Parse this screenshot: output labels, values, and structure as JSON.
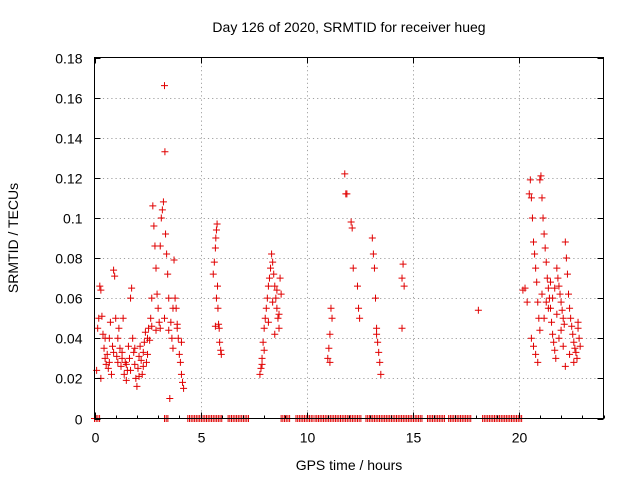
{
  "chart_data": {
    "type": "scatter",
    "title": "Day 126 of 2020, SRMTID for receiver hueg",
    "xlabel": "GPS time / hours",
    "ylabel": "SRMTID / TECUs",
    "xlim": [
      0,
      24
    ],
    "ylim": [
      0,
      0.18
    ],
    "xticks": [
      0,
      5,
      10,
      15,
      20
    ],
    "yticks": [
      0,
      0.02,
      0.04,
      0.06,
      0.08,
      0.1,
      0.12,
      0.14,
      0.16,
      0.18
    ],
    "xtick_labels": [
      "0",
      "5",
      "10",
      "15",
      "20"
    ],
    "ytick_labels": [
      "0",
      "0.02",
      "0.04",
      "0.06",
      "0.08",
      "0.1",
      "0.12",
      "0.14",
      "0.16",
      "0.18"
    ],
    "grid": true,
    "marker": "+",
    "color": "#e00000",
    "series": [
      {
        "name": "SRMTID",
        "points": [
          [
            0.1,
            0.024
          ],
          [
            0.15,
            0.045
          ],
          [
            0.2,
            0.05
          ],
          [
            0.25,
            0.066
          ],
          [
            0.3,
            0.064
          ],
          [
            0.35,
            0.051
          ],
          [
            0.4,
            0.042
          ],
          [
            0.45,
            0.035
          ],
          [
            0.5,
            0.03
          ],
          [
            0.55,
            0.027
          ],
          [
            0.6,
            0.032
          ],
          [
            0.65,
            0.025
          ],
          [
            0.7,
            0.04
          ],
          [
            0.75,
            0.048
          ],
          [
            0.8,
            0.022
          ],
          [
            0.85,
            0.036
          ],
          [
            0.9,
            0.074
          ],
          [
            0.95,
            0.071
          ],
          [
            1.0,
            0.05
          ],
          [
            1.05,
            0.031
          ],
          [
            1.1,
            0.028
          ],
          [
            1.15,
            0.045
          ],
          [
            1.2,
            0.035
          ],
          [
            1.25,
            0.026
          ],
          [
            1.3,
            0.033
          ],
          [
            1.35,
            0.05
          ],
          [
            1.4,
            0.022
          ],
          [
            1.45,
            0.028
          ],
          [
            1.5,
            0.019
          ],
          [
            1.55,
            0.024
          ],
          [
            1.6,
            0.036
          ],
          [
            1.65,
            0.03
          ],
          [
            1.7,
            0.06
          ],
          [
            1.75,
            0.065
          ],
          [
            1.8,
            0.04
          ],
          [
            1.85,
            0.033
          ],
          [
            1.9,
            0.027
          ],
          [
            1.95,
            0.02
          ],
          [
            2.0,
            0.016
          ],
          [
            2.05,
            0.025
          ],
          [
            2.1,
            0.031
          ],
          [
            2.15,
            0.036
          ],
          [
            2.2,
            0.029
          ],
          [
            2.25,
            0.022
          ],
          [
            2.3,
            0.033
          ],
          [
            2.35,
            0.038
          ],
          [
            2.4,
            0.043
          ],
          [
            2.45,
            0.028
          ],
          [
            2.5,
            0.032
          ],
          [
            2.55,
            0.045
          ],
          [
            2.6,
            0.039
          ],
          [
            2.65,
            0.05
          ],
          [
            2.7,
            0.06
          ],
          [
            2.75,
            0.106
          ],
          [
            2.8,
            0.096
          ],
          [
            2.85,
            0.086
          ],
          [
            2.9,
            0.075
          ],
          [
            2.95,
            0.062
          ],
          [
            3.0,
            0.055
          ],
          [
            3.05,
            0.048
          ],
          [
            3.1,
            0.086
          ],
          [
            3.15,
            0.1
          ],
          [
            3.2,
            0.104
          ],
          [
            3.25,
            0.108
          ],
          [
            3.3,
            0.166
          ],
          [
            3.32,
            0.133
          ],
          [
            3.35,
            0.092
          ],
          [
            3.4,
            0.082
          ],
          [
            3.45,
            0.072
          ],
          [
            3.5,
            0.06
          ],
          [
            3.55,
            0.01
          ],
          [
            3.6,
            0.048
          ],
          [
            3.65,
            0.04
          ],
          [
            3.7,
            0.035
          ],
          [
            3.75,
            0.079
          ],
          [
            3.8,
            0.06
          ],
          [
            3.85,
            0.055
          ],
          [
            3.9,
            0.045
          ],
          [
            3.95,
            0.04
          ],
          [
            4.0,
            0.032
          ],
          [
            4.05,
            0.028
          ],
          [
            4.1,
            0.022
          ],
          [
            4.15,
            0.018
          ],
          [
            4.2,
            0.015
          ],
          [
            0.3,
            0.02
          ],
          [
            0.5,
            0.04
          ],
          [
            0.7,
            0.028
          ],
          [
            0.9,
            0.033
          ],
          [
            1.1,
            0.04
          ],
          [
            1.3,
            0.03
          ],
          [
            1.5,
            0.027
          ],
          [
            1.7,
            0.024
          ],
          [
            1.9,
            0.035
          ],
          [
            2.1,
            0.021
          ],
          [
            2.3,
            0.026
          ],
          [
            2.5,
            0.04
          ],
          [
            2.7,
            0.046
          ],
          [
            2.9,
            0.044
          ],
          [
            3.1,
            0.045
          ],
          [
            3.3,
            0.05
          ],
          [
            3.5,
            0.044
          ],
          [
            3.7,
            0.055
          ],
          [
            3.9,
            0.047
          ],
          [
            4.1,
            0.038
          ],
          [
            5.6,
            0.072
          ],
          [
            5.65,
            0.078
          ],
          [
            5.7,
            0.085
          ],
          [
            5.72,
            0.09
          ],
          [
            5.75,
            0.094
          ],
          [
            5.78,
            0.097
          ],
          [
            5.8,
            0.066
          ],
          [
            5.82,
            0.055
          ],
          [
            5.85,
            0.047
          ],
          [
            5.88,
            0.045
          ],
          [
            5.9,
            0.038
          ],
          [
            5.95,
            0.034
          ],
          [
            5.98,
            0.032
          ],
          [
            5.7,
            0.046
          ],
          [
            5.75,
            0.06
          ],
          [
            7.8,
            0.022
          ],
          [
            7.85,
            0.025
          ],
          [
            7.9,
            0.03
          ],
          [
            7.95,
            0.038
          ],
          [
            8.0,
            0.045
          ],
          [
            8.05,
            0.05
          ],
          [
            8.1,
            0.055
          ],
          [
            8.15,
            0.06
          ],
          [
            8.2,
            0.066
          ],
          [
            8.25,
            0.07
          ],
          [
            8.3,
            0.075
          ],
          [
            8.35,
            0.082
          ],
          [
            8.4,
            0.078
          ],
          [
            8.45,
            0.072
          ],
          [
            8.5,
            0.066
          ],
          [
            8.55,
            0.06
          ],
          [
            8.6,
            0.055
          ],
          [
            8.65,
            0.05
          ],
          [
            8.7,
            0.045
          ],
          [
            8.75,
            0.07
          ],
          [
            8.8,
            0.062
          ],
          [
            7.9,
            0.027
          ],
          [
            8.0,
            0.034
          ],
          [
            8.2,
            0.048
          ],
          [
            8.4,
            0.058
          ],
          [
            8.6,
            0.064
          ],
          [
            8.7,
            0.052
          ],
          [
            8.5,
            0.042
          ],
          [
            11.0,
            0.03
          ],
          [
            11.05,
            0.035
          ],
          [
            11.1,
            0.042
          ],
          [
            11.15,
            0.055
          ],
          [
            11.2,
            0.05
          ],
          [
            11.1,
            0.028
          ],
          [
            11.8,
            0.122
          ],
          [
            11.85,
            0.112
          ],
          [
            11.9,
            0.112
          ],
          [
            12.1,
            0.098
          ],
          [
            12.15,
            0.095
          ],
          [
            12.2,
            0.075
          ],
          [
            12.4,
            0.066
          ],
          [
            12.45,
            0.055
          ],
          [
            12.5,
            0.05
          ],
          [
            13.1,
            0.09
          ],
          [
            13.15,
            0.082
          ],
          [
            13.2,
            0.075
          ],
          [
            13.25,
            0.06
          ],
          [
            13.3,
            0.045
          ],
          [
            13.35,
            0.038
          ],
          [
            13.4,
            0.033
          ],
          [
            13.45,
            0.028
          ],
          [
            13.5,
            0.022
          ],
          [
            13.3,
            0.042
          ],
          [
            14.5,
            0.045
          ],
          [
            14.55,
            0.077
          ],
          [
            14.6,
            0.066
          ],
          [
            14.5,
            0.07
          ],
          [
            18.1,
            0.054
          ],
          [
            20.2,
            0.064
          ],
          [
            20.3,
            0.065
          ],
          [
            20.4,
            0.058
          ],
          [
            20.5,
            0.112
          ],
          [
            20.55,
            0.119
          ],
          [
            20.6,
            0.11
          ],
          [
            20.65,
            0.1
          ],
          [
            20.7,
            0.088
          ],
          [
            20.75,
            0.082
          ],
          [
            20.8,
            0.075
          ],
          [
            20.85,
            0.068
          ],
          [
            20.9,
            0.058
          ],
          [
            20.95,
            0.05
          ],
          [
            21.0,
            0.119
          ],
          [
            21.05,
            0.121
          ],
          [
            21.1,
            0.11
          ],
          [
            21.15,
            0.1
          ],
          [
            21.2,
            0.092
          ],
          [
            21.25,
            0.085
          ],
          [
            21.3,
            0.078
          ],
          [
            21.35,
            0.07
          ],
          [
            21.4,
            0.065
          ],
          [
            21.45,
            0.06
          ],
          [
            21.5,
            0.055
          ],
          [
            21.55,
            0.048
          ],
          [
            21.6,
            0.042
          ],
          [
            21.65,
            0.038
          ],
          [
            21.7,
            0.034
          ],
          [
            21.75,
            0.03
          ],
          [
            21.8,
            0.075
          ],
          [
            21.85,
            0.07
          ],
          [
            21.9,
            0.066
          ],
          [
            21.95,
            0.062
          ],
          [
            22.0,
            0.058
          ],
          [
            22.05,
            0.054
          ],
          [
            22.1,
            0.05
          ],
          [
            22.15,
            0.047
          ],
          [
            22.2,
            0.088
          ],
          [
            22.25,
            0.08
          ],
          [
            22.3,
            0.072
          ],
          [
            22.35,
            0.062
          ],
          [
            22.4,
            0.055
          ],
          [
            22.45,
            0.05
          ],
          [
            22.5,
            0.046
          ],
          [
            22.55,
            0.042
          ],
          [
            22.6,
            0.038
          ],
          [
            22.65,
            0.035
          ],
          [
            22.7,
            0.033
          ],
          [
            22.75,
            0.03
          ],
          [
            22.8,
            0.045
          ],
          [
            22.85,
            0.04
          ],
          [
            22.9,
            0.036
          ],
          [
            20.6,
            0.04
          ],
          [
            20.7,
            0.036
          ],
          [
            20.8,
            0.032
          ],
          [
            20.9,
            0.028
          ],
          [
            21.0,
            0.044
          ],
          [
            21.2,
            0.05
          ],
          [
            21.4,
            0.055
          ],
          [
            21.6,
            0.06
          ],
          [
            21.8,
            0.052
          ],
          [
            22.0,
            0.044
          ],
          [
            22.2,
            0.026
          ],
          [
            22.4,
            0.032
          ],
          [
            22.6,
            0.028
          ],
          [
            22.8,
            0.048
          ],
          [
            21.1,
            0.062
          ],
          [
            21.3,
            0.058
          ],
          [
            21.5,
            0.068
          ],
          [
            21.7,
            0.065
          ],
          [
            21.9,
            0.04
          ],
          [
            22.1,
            0.036
          ]
        ]
      }
    ],
    "zero_segments": [
      [
        0.0,
        0.25
      ],
      [
        3.3,
        3.5
      ],
      [
        4.4,
        6.0
      ],
      [
        6.3,
        7.3
      ],
      [
        8.8,
        9.2
      ],
      [
        9.5,
        10.3
      ],
      [
        10.4,
        12.6
      ],
      [
        12.8,
        15.5
      ],
      [
        15.7,
        16.5
      ],
      [
        16.7,
        17.8
      ],
      [
        18.3,
        20.2
      ]
    ]
  }
}
